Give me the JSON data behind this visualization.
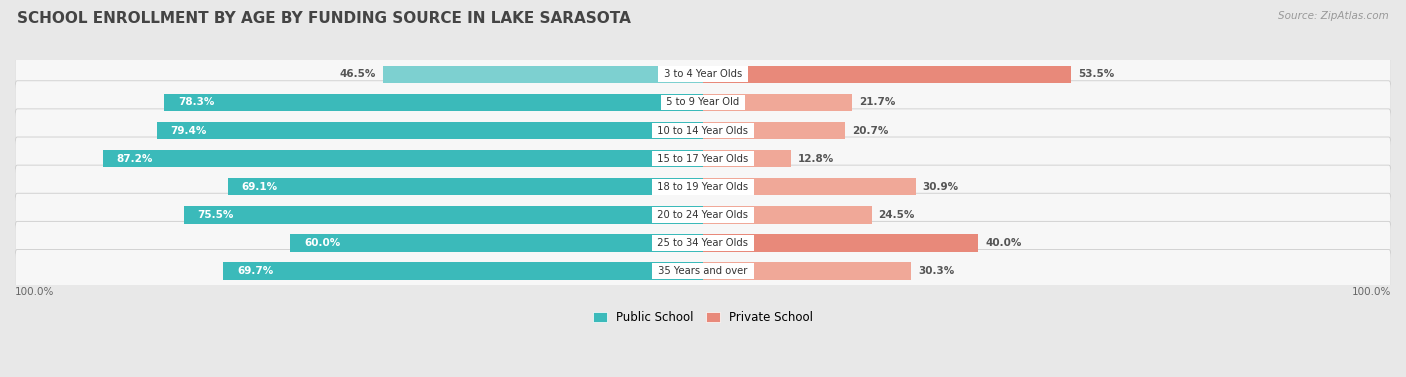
{
  "title": "SCHOOL ENROLLMENT BY AGE BY FUNDING SOURCE IN LAKE SARASOTA",
  "source": "Source: ZipAtlas.com",
  "categories": [
    "3 to 4 Year Olds",
    "5 to 9 Year Old",
    "10 to 14 Year Olds",
    "15 to 17 Year Olds",
    "18 to 19 Year Olds",
    "20 to 24 Year Olds",
    "25 to 34 Year Olds",
    "35 Years and over"
  ],
  "public_values": [
    46.5,
    78.3,
    79.4,
    87.2,
    69.1,
    75.5,
    60.0,
    69.7
  ],
  "private_values": [
    53.5,
    21.7,
    20.7,
    12.8,
    30.9,
    24.5,
    40.0,
    30.3
  ],
  "public_colors": [
    "#7DD0D0",
    "#3BBABA",
    "#3BBABA",
    "#3BBABA",
    "#3BBABA",
    "#3BBABA",
    "#3BBABA",
    "#3BBABA"
  ],
  "private_colors": [
    "#E8897A",
    "#F0A898",
    "#F0A898",
    "#F0A898",
    "#F0A898",
    "#F0A898",
    "#E8897A",
    "#F0A898"
  ],
  "public_label": "Public School",
  "private_label": "Private School",
  "legend_public_color": "#3BBABA",
  "legend_private_color": "#E8897A",
  "background_color": "#e8e8e8",
  "row_bg_color": "#f5f5f5",
  "axis_label_left": "100.0%",
  "axis_label_right": "100.0%",
  "title_fontsize": 11,
  "bar_height": 0.62,
  "xlim": 100
}
